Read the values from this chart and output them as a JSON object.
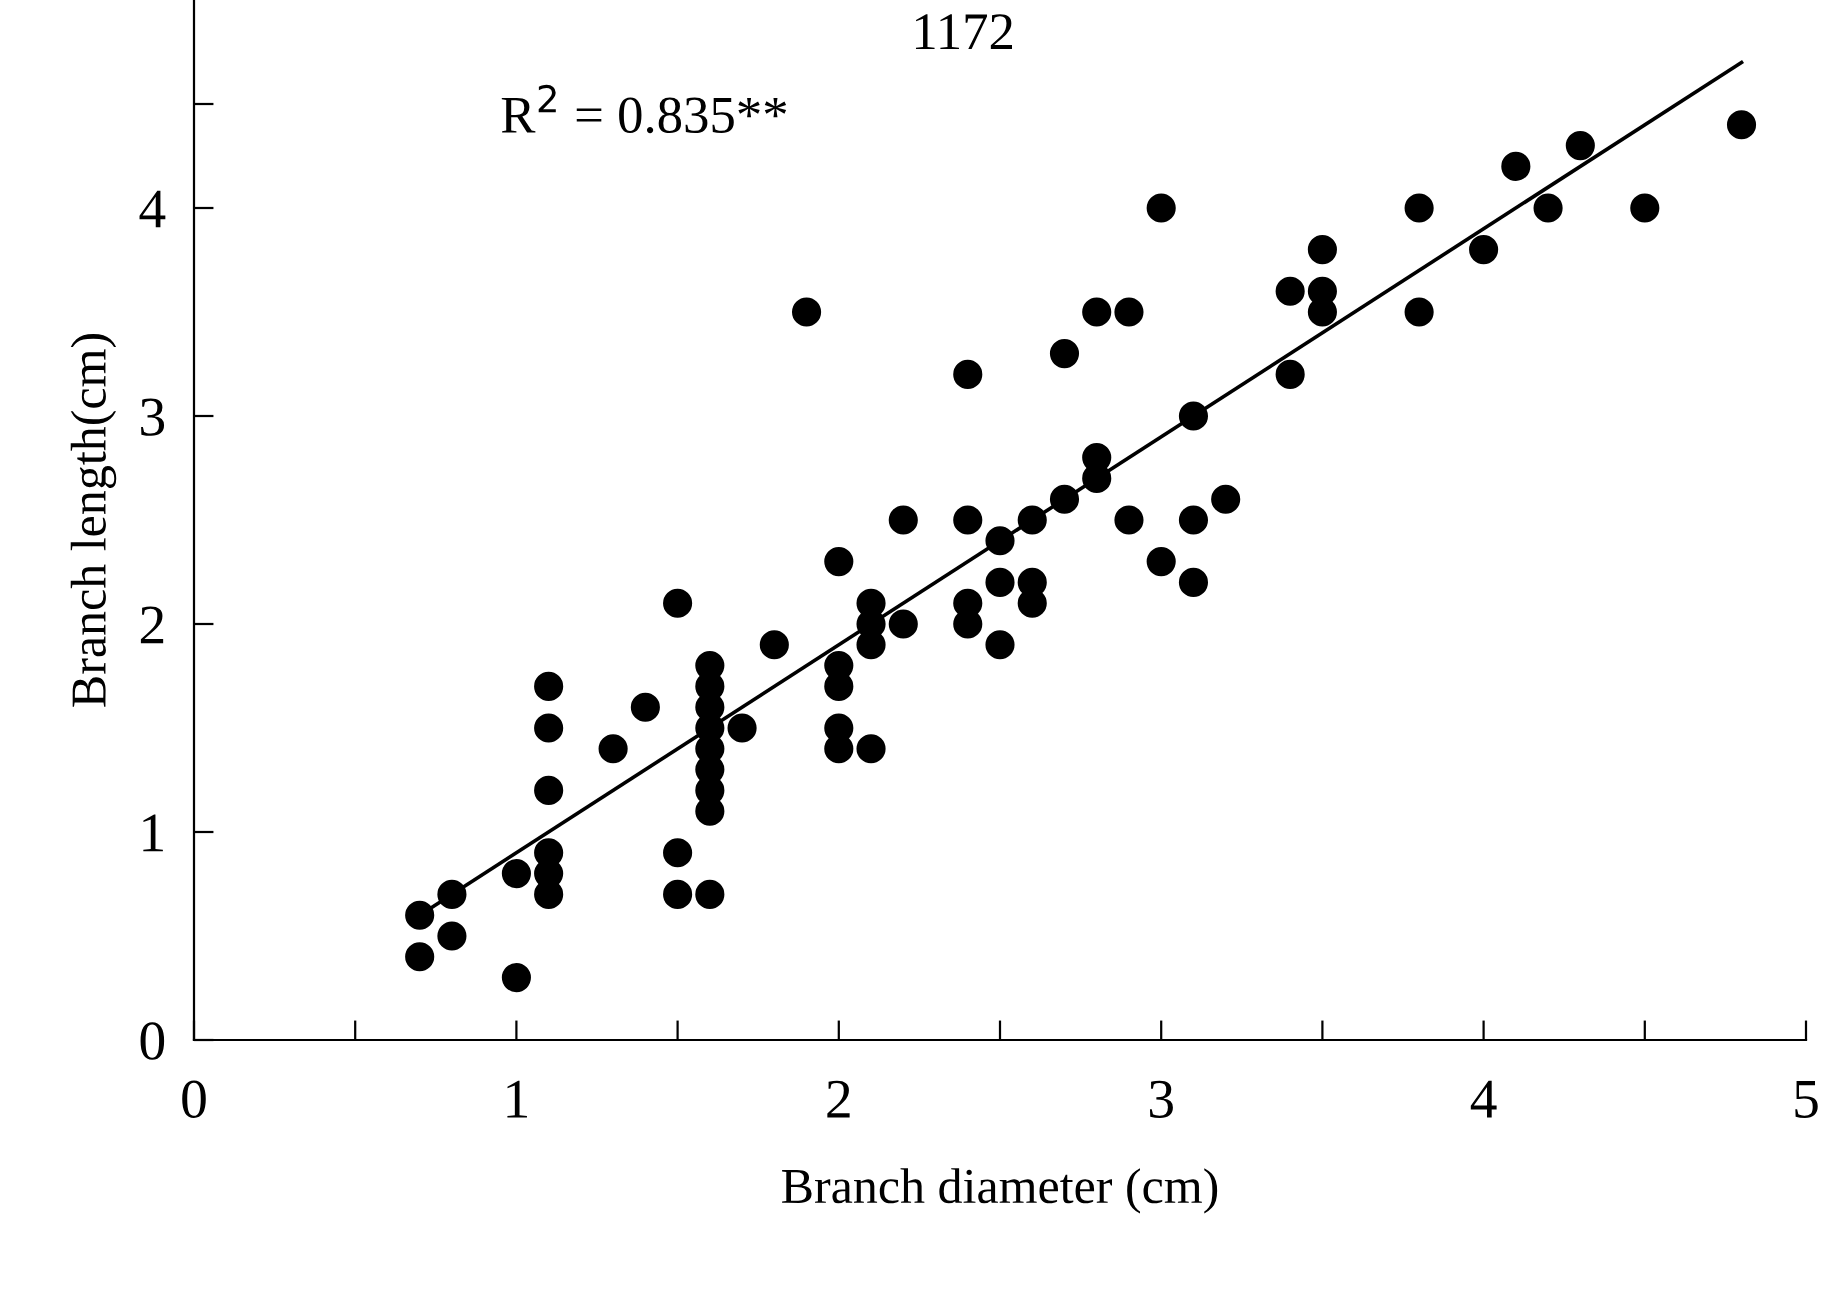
{
  "chart_data": {
    "type": "scatter",
    "xlabel": "Branch diameter (cm)",
    "ylabel": "Branch length(cm)",
    "annotations": [
      "1172",
      "R$^{2}$ = 0.835**"
    ],
    "xlim": [
      0,
      5
    ],
    "ylim": [
      0,
      5
    ],
    "xticks": [
      0,
      {
        "value": 0.5,
        "label": null
      },
      1,
      {
        "value": 1.5,
        "label": null
      },
      2,
      {
        "value": 2.5,
        "label": null
      },
      3,
      {
        "value": 3.5,
        "label": null
      },
      4,
      {
        "value": 4.5,
        "label": null
      },
      5
    ],
    "yticks": [
      0,
      1,
      2,
      3,
      4,
      {
        "value": 4.5,
        "label": null
      }
    ],
    "grid": false,
    "legend": false,
    "series": [
      {
        "color": "#000000",
        "marker": "circle",
        "x": [
          0.7,
          0.7,
          0.8,
          0.8,
          1.0,
          1.0,
          1.1,
          1.1,
          1.1,
          1.1,
          1.1,
          1.1,
          1.3,
          1.4,
          1.5,
          1.5,
          1.5,
          1.6,
          1.6,
          1.6,
          1.6,
          1.6,
          1.6,
          1.6,
          1.6,
          1.6,
          1.7,
          1.8,
          1.9,
          2.0,
          2.0,
          2.0,
          2.0,
          2.0,
          2.1,
          2.1,
          2.1,
          2.1,
          2.2,
          2.2,
          2.4,
          2.4,
          2.4,
          2.4,
          2.5,
          2.5,
          2.5,
          2.6,
          2.6,
          2.6,
          2.7,
          2.7,
          2.8,
          2.8,
          2.8,
          2.9,
          2.9,
          3.0,
          3.0,
          3.1,
          3.1,
          3.1,
          3.2,
          3.4,
          3.4,
          3.5,
          3.5,
          3.5,
          3.8,
          3.8,
          4.0,
          4.1,
          4.2,
          4.3,
          4.5,
          4.8
        ],
        "values": [
          0.6,
          0.4,
          0.7,
          0.5,
          0.8,
          0.3,
          1.7,
          1.5,
          1.2,
          0.9,
          0.8,
          0.7,
          1.4,
          1.6,
          2.1,
          0.9,
          0.7,
          1.8,
          1.7,
          1.6,
          1.5,
          1.4,
          1.3,
          1.2,
          1.1,
          0.7,
          1.5,
          1.9,
          3.5,
          2.3,
          1.8,
          1.7,
          1.5,
          1.4,
          2.1,
          2.0,
          1.9,
          1.4,
          2.5,
          2.0,
          3.2,
          2.5,
          2.1,
          2.0,
          2.4,
          2.2,
          1.9,
          2.5,
          2.2,
          2.1,
          3.3,
          2.6,
          3.5,
          2.8,
          2.7,
          3.5,
          2.5,
          4.0,
          2.3,
          3.0,
          2.5,
          2.2,
          2.6,
          3.6,
          3.2,
          3.8,
          3.6,
          3.5,
          4.0,
          3.5,
          3.8,
          4.2,
          4.0,
          4.3,
          4.0,
          4.4
        ]
      },
      {
        "type": "line",
        "color": "#000000",
        "marker": "none",
        "line_style": "solid",
        "x": [
          0.7,
          4.8
        ],
        "values": [
          0.6,
          4.7
        ]
      }
    ]
  }
}
